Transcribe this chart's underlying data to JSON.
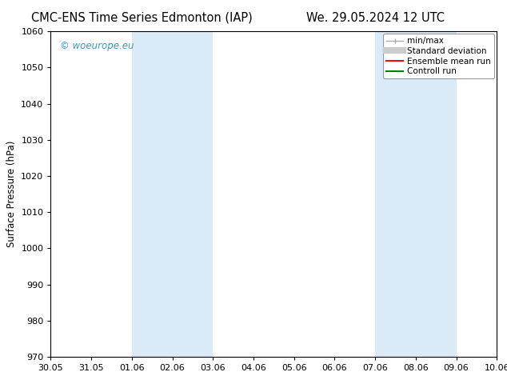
{
  "title_left": "CMC-ENS Time Series Edmonton (IAP)",
  "title_right": "We. 29.05.2024 12 UTC",
  "ylabel": "Surface Pressure (hPa)",
  "ylim": [
    970,
    1060
  ],
  "yticks": [
    970,
    980,
    990,
    1000,
    1010,
    1020,
    1030,
    1040,
    1050,
    1060
  ],
  "xtick_labels": [
    "30.05",
    "31.05",
    "01.06",
    "02.06",
    "03.06",
    "04.06",
    "05.06",
    "06.06",
    "07.06",
    "08.06",
    "09.06",
    "10.06"
  ],
  "xtick_positions": [
    0,
    1,
    2,
    3,
    4,
    5,
    6,
    7,
    8,
    9,
    10,
    11
  ],
  "shaded_bands": [
    {
      "xmin": 2,
      "xmax": 4
    },
    {
      "xmin": 8,
      "xmax": 10
    }
  ],
  "shade_color": "#daeaf7",
  "watermark": "© woeurope.eu",
  "watermark_color": "#3399cc",
  "legend_items": [
    {
      "label": "min/max",
      "color": "#aaaaaa",
      "lw": 1.2
    },
    {
      "label": "Standard deviation",
      "color": "#cccccc",
      "lw": 6
    },
    {
      "label": "Ensemble mean run",
      "color": "red",
      "lw": 1.5
    },
    {
      "label": "Controll run",
      "color": "green",
      "lw": 1.5
    }
  ],
  "bg_color": "#ffffff",
  "plot_bg_color": "#ffffff",
  "title_fontsize": 10.5,
  "axis_fontsize": 8.5,
  "tick_fontsize": 8,
  "legend_fontsize": 7.5,
  "watermark_fontsize": 8.5
}
